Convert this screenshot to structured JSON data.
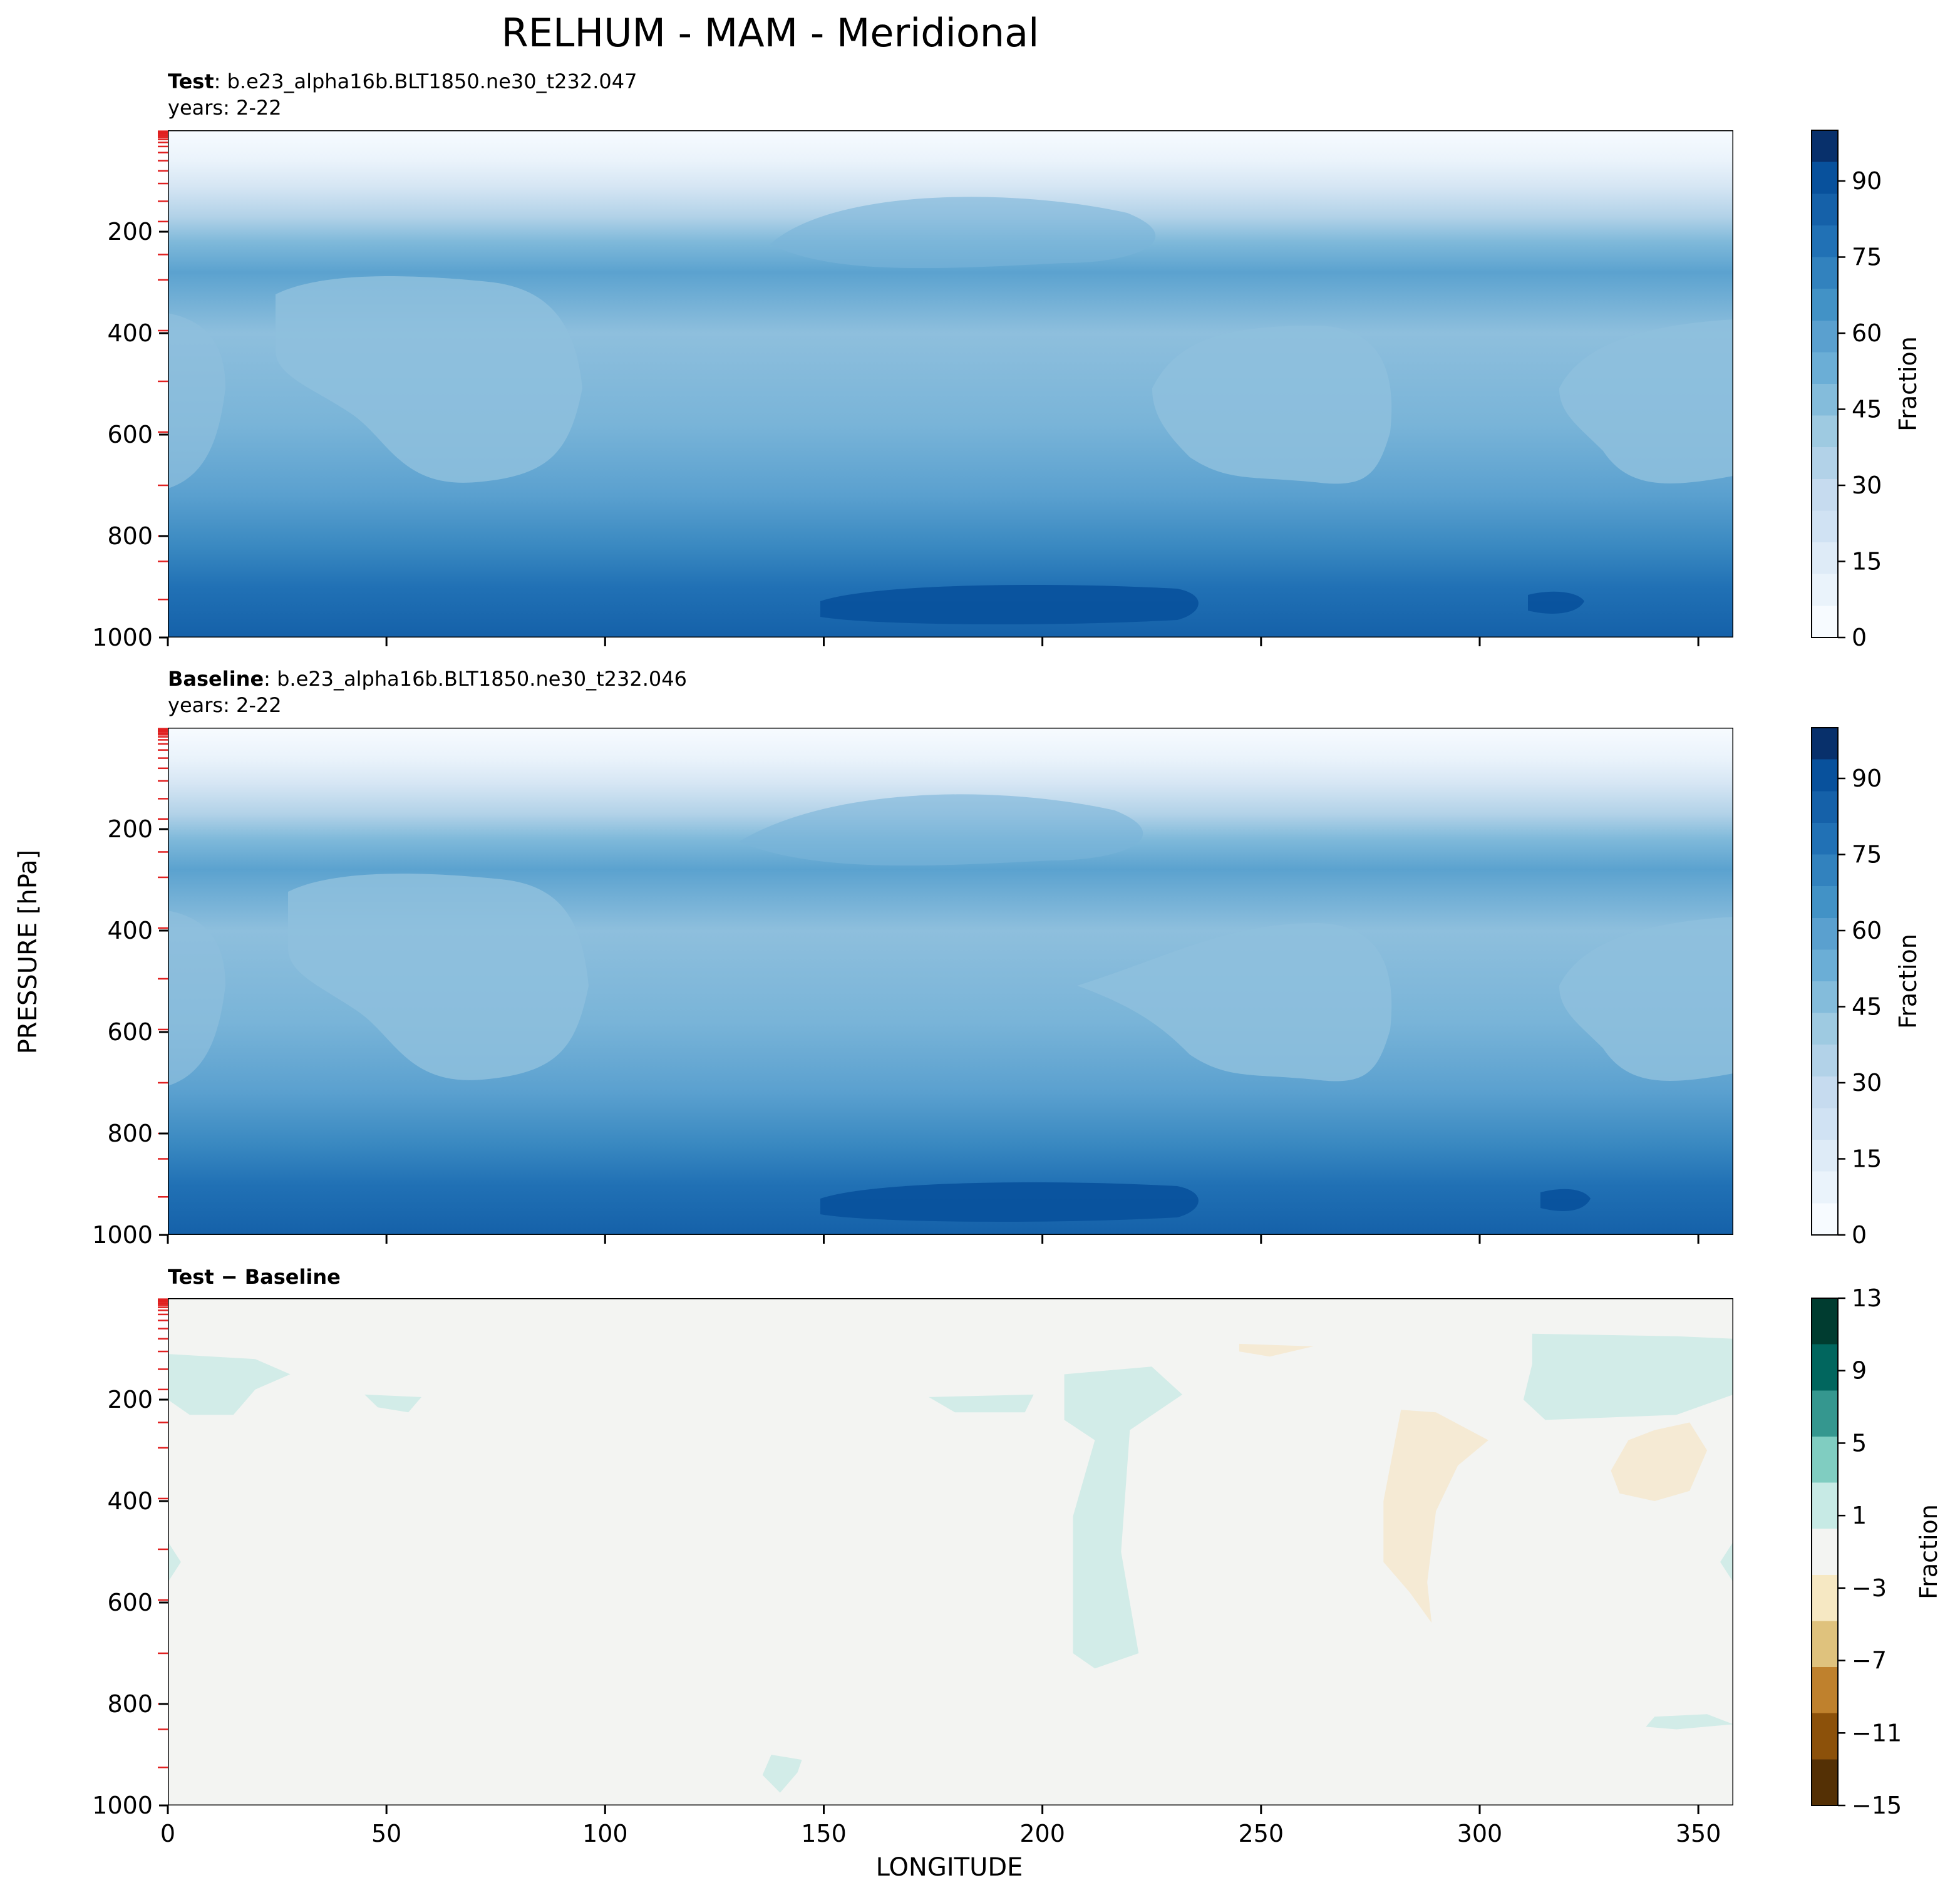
{
  "figure": {
    "title": "RELHUM - MAM - Meridional",
    "ylabel": "PRESSURE [hPa]",
    "xlabel": "LONGITUDE"
  },
  "panels": [
    {
      "id": "test",
      "label_bold": "Test",
      "label_rest": ": b.e23_alpha16b.BLT1850.ne30_t232.047",
      "years": "years: 2-22",
      "colorbar_label": "Fraction",
      "colorbar_ticks": [
        "0",
        "15",
        "30",
        "45",
        "60",
        "75",
        "90"
      ]
    },
    {
      "id": "baseline",
      "label_bold": "Baseline",
      "label_rest": ": b.e23_alpha16b.BLT1850.ne30_t232.046",
      "years": "years: 2-22",
      "colorbar_label": "Fraction",
      "colorbar_ticks": [
        "0",
        "15",
        "30",
        "45",
        "60",
        "75",
        "90"
      ]
    },
    {
      "id": "diff",
      "label_bold": "Test − Baseline",
      "label_rest": "",
      "years": "",
      "colorbar_label": "Fraction",
      "colorbar_ticks": [
        "−15",
        "−11",
        "−7",
        "−3",
        "1",
        "5",
        "9",
        "13"
      ]
    }
  ],
  "colors": {
    "blues": [
      "#f7fbff",
      "#eaf3fb",
      "#deebf7",
      "#d0e2f3",
      "#c6dbef",
      "#b2d2e8",
      "#9ecae1",
      "#84bcdb",
      "#6baed6",
      "#5aa0cf",
      "#4292c6",
      "#3282be",
      "#2171b5",
      "#1561a9",
      "#08519c",
      "#08306b"
    ],
    "brbg": [
      "#543005",
      "#8c510a",
      "#bf812d",
      "#dfc27d",
      "#f6e8c3",
      "#f3f4f2",
      "#c7eae5",
      "#80cdc1",
      "#35978f",
      "#01665e",
      "#003c30"
    ],
    "diff_background": "#f3f4f2",
    "diff_positive": "#d2ece8",
    "diff_negative": "#f5ead4",
    "level_marks": "#e02020"
  },
  "chart_data": [
    {
      "type": "heatmap",
      "name": "Test",
      "x": [
        0,
        50,
        100,
        150,
        200,
        250,
        300,
        350
      ],
      "y": [
        200,
        400,
        600,
        800,
        1000
      ],
      "xlim": [
        0,
        358
      ],
      "ylim": [
        1000,
        0
      ],
      "yscale": "linear",
      "y_inverted": true,
      "x_tick_labels": [
        "0",
        "50",
        "100",
        "150",
        "200",
        "250",
        "300",
        "350"
      ],
      "y_tick_labels": [
        "200",
        "400",
        "600",
        "800",
        "1000"
      ],
      "colorbar": {
        "min": 0,
        "max": 100,
        "ticks": [
          0,
          15,
          30,
          45,
          60,
          75,
          90
        ]
      },
      "profile": {
        "pressure": [
          0,
          50,
          100,
          150,
          200,
          250,
          300,
          400,
          500,
          600,
          700,
          800,
          850,
          900,
          950,
          1000
        ],
        "relhum": [
          1,
          6,
          18,
          28,
          40,
          58,
          52,
          44,
          42,
          46,
          52,
          62,
          70,
          76,
          82,
          84
        ]
      }
    },
    {
      "type": "heatmap",
      "name": "Baseline",
      "x": [
        0,
        50,
        100,
        150,
        200,
        250,
        300,
        350
      ],
      "y": [
        200,
        400,
        600,
        800,
        1000
      ],
      "xlim": [
        0,
        358
      ],
      "ylim": [
        1000,
        0
      ],
      "yscale": "linear",
      "y_inverted": true,
      "x_tick_labels": [
        "0",
        "50",
        "100",
        "150",
        "200",
        "250",
        "300",
        "350"
      ],
      "y_tick_labels": [
        "200",
        "400",
        "600",
        "800",
        "1000"
      ],
      "colorbar": {
        "min": 0,
        "max": 100,
        "ticks": [
          0,
          15,
          30,
          45,
          60,
          75,
          90
        ]
      },
      "profile": {
        "pressure": [
          0,
          50,
          100,
          150,
          200,
          250,
          300,
          400,
          500,
          600,
          700,
          800,
          850,
          900,
          950,
          1000
        ],
        "relhum": [
          1,
          6,
          18,
          28,
          40,
          58,
          52,
          44,
          42,
          46,
          52,
          62,
          70,
          76,
          82,
          84
        ]
      }
    },
    {
      "type": "heatmap",
      "name": "Test − Baseline",
      "x": [
        0,
        50,
        100,
        150,
        200,
        250,
        300,
        350
      ],
      "y": [
        200,
        400,
        600,
        800,
        1000
      ],
      "xlim": [
        0,
        358
      ],
      "ylim": [
        1000,
        0
      ],
      "y_inverted": true,
      "x_tick_labels": [
        "0",
        "50",
        "100",
        "150",
        "200",
        "250",
        "300",
        "350"
      ],
      "y_tick_labels": [
        "200",
        "400",
        "600",
        "800",
        "1000"
      ],
      "colorbar": {
        "min": -15,
        "max": 13,
        "ticks": [
          -15,
          -11,
          -7,
          -3,
          1,
          5,
          9,
          13
        ]
      },
      "anomalies": [
        {
          "sign": "positive",
          "points": [
            [
              0,
              110
            ],
            [
              20,
              120
            ],
            [
              28,
              150
            ],
            [
              20,
              180
            ],
            [
              15,
              230
            ],
            [
              5,
              230
            ],
            [
              0,
              200
            ]
          ]
        },
        {
          "sign": "positive",
          "points": [
            [
              45,
              190
            ],
            [
              58,
              195
            ],
            [
              55,
              225
            ],
            [
              48,
              215
            ]
          ]
        },
        {
          "sign": "positive",
          "points": [
            [
              174,
              195
            ],
            [
              198,
              190
            ],
            [
              196,
              225
            ],
            [
              180,
              225
            ]
          ]
        },
        {
          "sign": "positive",
          "points": [
            [
              205,
              150
            ],
            [
              225,
              135
            ],
            [
              232,
              190
            ],
            [
              220,
              260
            ],
            [
              218,
              500
            ],
            [
              222,
              700
            ],
            [
              212,
              730
            ],
            [
              207,
              700
            ],
            [
              207,
              430
            ],
            [
              212,
              280
            ],
            [
              205,
              240
            ]
          ]
        },
        {
          "sign": "positive",
          "points": [
            [
              312,
              70
            ],
            [
              345,
              75
            ],
            [
              358,
              80
            ],
            [
              358,
              190
            ],
            [
              345,
              230
            ],
            [
              315,
              240
            ],
            [
              310,
              200
            ],
            [
              312,
              130
            ]
          ]
        },
        {
          "sign": "positive",
          "points": [
            [
              138,
              900
            ],
            [
              145,
              910
            ],
            [
              144,
              935
            ],
            [
              140,
              975
            ],
            [
              136,
              940
            ]
          ]
        },
        {
          "sign": "positive",
          "points": [
            [
              340,
              825
            ],
            [
              352,
              820
            ],
            [
              358,
              840
            ],
            [
              345,
              850
            ],
            [
              338,
              845
            ]
          ]
        },
        {
          "sign": "positive",
          "points": [
            [
              0,
              480
            ],
            [
              3,
              520
            ],
            [
              0,
              560
            ]
          ]
        },
        {
          "sign": "positive",
          "points": [
            [
              358,
              480
            ],
            [
              355,
              520
            ],
            [
              358,
              560
            ]
          ]
        },
        {
          "sign": "negative",
          "points": [
            [
              245,
              90
            ],
            [
              262,
              95
            ],
            [
              252,
              115
            ],
            [
              245,
              105
            ]
          ]
        },
        {
          "sign": "negative",
          "points": [
            [
              282,
              220
            ],
            [
              290,
              225
            ],
            [
              302,
              280
            ],
            [
              295,
              330
            ],
            [
              290,
              420
            ],
            [
              288,
              560
            ],
            [
              289,
              640
            ],
            [
              284,
              580
            ],
            [
              278,
              520
            ],
            [
              278,
              400
            ]
          ]
        },
        {
          "sign": "negative",
          "points": [
            [
              340,
              260
            ],
            [
              348,
              245
            ],
            [
              352,
              300
            ],
            [
              348,
              380
            ],
            [
              340,
              400
            ],
            [
              332,
              385
            ],
            [
              330,
              340
            ],
            [
              334,
              280
            ]
          ]
        }
      ]
    }
  ]
}
